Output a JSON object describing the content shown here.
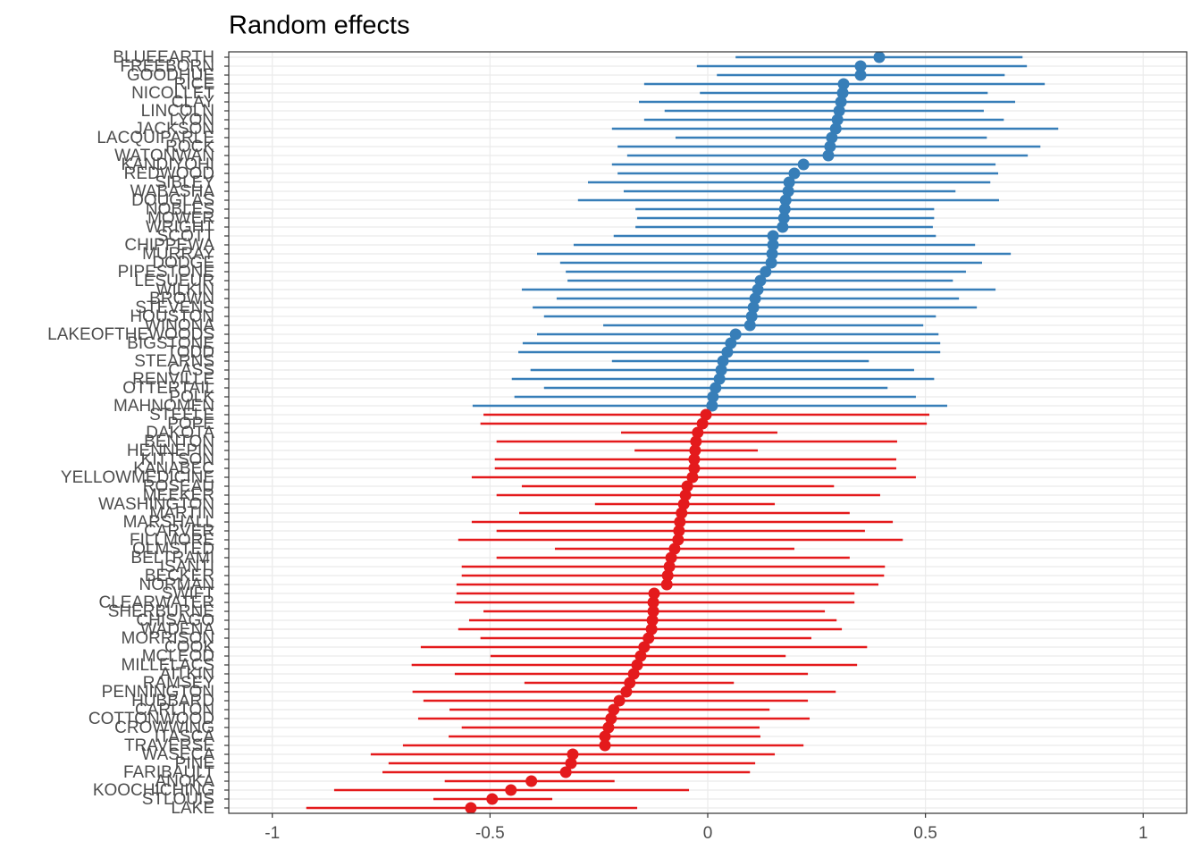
{
  "chart_data": {
    "type": "forest",
    "title": "Random effects",
    "categories": [
      "BLUEEARTH",
      "FREEBORN",
      "GOODHUE",
      "RICE",
      "NICOLLET",
      "CLAY",
      "LINCOLN",
      "LYON",
      "JACKSON",
      "LACQUIPARLE",
      "ROCK",
      "WATONWAN",
      "KANDIYOHI",
      "REDWOOD",
      "SIBLEY",
      "WABASHA",
      "DOUGLAS",
      "NOBLES",
      "MOWER",
      "WRIGHT",
      "SCOTT",
      "CHIPPEWA",
      "MURRAY",
      "DODGE",
      "PIPESTONE",
      "LESUEUR",
      "WILKIN",
      "BROWN",
      "STEVENS",
      "HOUSTON",
      "WINONA",
      "LAKEOFTHEWOODS",
      "BIGSTONE",
      "TODD",
      "STEARNS",
      "CASS",
      "RENVILLE",
      "OTTERTAIL",
      "POLK",
      "MAHNOMEN",
      "STEELE",
      "POPE",
      "DAKOTA",
      "BENTON",
      "HENNEPIN",
      "KITTSON",
      "KANABEC",
      "YELLOWMEDICINE",
      "ROSEAU",
      "MEEKER",
      "WASHINGTON",
      "MARTIN",
      "MARSHALL",
      "CARVER",
      "FILLMORE",
      "OLMSTED",
      "BELTRAMI",
      "ISANTI",
      "BECKER",
      "NORMAN",
      "SWIFT",
      "CLEARWATER",
      "SHERBURNE",
      "CHISAGO",
      "WADENA",
      "MORRISON",
      "COOK",
      "MCLEOD",
      "MILLELACS",
      "AITKIN",
      "RAMSEY",
      "PENNINGTON",
      "HUBBARD",
      "CARLTON",
      "COTTONWOOD",
      "CROWWING",
      "ITASCA",
      "TRAVERSE",
      "WASECA",
      "PINE",
      "FARIBAULT",
      "ANOKA",
      "KOOCHICHING",
      "STLOUIS",
      "LAKE"
    ],
    "values": [
      0.394,
      0.351,
      0.351,
      0.312,
      0.31,
      0.306,
      0.302,
      0.298,
      0.294,
      0.285,
      0.281,
      0.277,
      0.22,
      0.199,
      0.187,
      0.185,
      0.179,
      0.177,
      0.175,
      0.172,
      0.15,
      0.15,
      0.148,
      0.146,
      0.133,
      0.121,
      0.115,
      0.109,
      0.105,
      0.101,
      0.097,
      0.064,
      0.053,
      0.045,
      0.035,
      0.031,
      0.027,
      0.018,
      0.012,
      0.01,
      -0.004,
      -0.012,
      -0.023,
      -0.027,
      -0.029,
      -0.031,
      -0.031,
      -0.035,
      -0.047,
      -0.051,
      -0.055,
      -0.06,
      -0.064,
      -0.066,
      -0.068,
      -0.076,
      -0.084,
      -0.088,
      -0.092,
      -0.094,
      -0.123,
      -0.125,
      -0.125,
      -0.127,
      -0.129,
      -0.136,
      -0.146,
      -0.154,
      -0.162,
      -0.17,
      -0.179,
      -0.187,
      -0.203,
      -0.216,
      -0.222,
      -0.228,
      -0.236,
      -0.236,
      -0.31,
      -0.314,
      -0.326,
      -0.405,
      -0.452,
      -0.495,
      -0.544
    ],
    "lower": [
      0.064,
      -0.025,
      0.021,
      -0.146,
      -0.018,
      -0.158,
      -0.099,
      -0.146,
      -0.22,
      -0.074,
      -0.207,
      -0.185,
      -0.22,
      -0.207,
      -0.275,
      -0.193,
      -0.298,
      -0.166,
      -0.162,
      -0.166,
      -0.216,
      -0.308,
      -0.392,
      -0.339,
      -0.326,
      -0.322,
      -0.427,
      -0.347,
      -0.402,
      -0.376,
      -0.24,
      -0.392,
      -0.425,
      -0.435,
      -0.22,
      -0.407,
      -0.45,
      -0.376,
      -0.444,
      -0.54,
      -0.515,
      -0.522,
      -0.199,
      -0.485,
      -0.168,
      -0.489,
      -0.489,
      -0.542,
      -0.427,
      -0.485,
      -0.259,
      -0.433,
      -0.542,
      -0.485,
      -0.573,
      -0.351,
      -0.485,
      -0.565,
      -0.565,
      -0.577,
      -0.577,
      -0.581,
      -0.515,
      -0.548,
      -0.573,
      -0.522,
      -0.659,
      -0.499,
      -0.68,
      -0.581,
      -0.421,
      -0.678,
      -0.653,
      -0.593,
      -0.665,
      -0.565,
      -0.595,
      -0.7,
      -0.774,
      -0.733,
      -0.747,
      -0.604,
      -0.858,
      -0.63,
      -0.922
    ],
    "upper": [
      0.723,
      0.733,
      0.682,
      0.774,
      0.643,
      0.706,
      0.634,
      0.68,
      0.805,
      0.641,
      0.764,
      0.735,
      0.661,
      0.667,
      0.649,
      0.569,
      0.669,
      0.52,
      0.52,
      0.517,
      0.524,
      0.614,
      0.696,
      0.63,
      0.593,
      0.563,
      0.661,
      0.577,
      0.618,
      0.524,
      0.495,
      0.53,
      0.534,
      0.534,
      0.37,
      0.474,
      0.52,
      0.413,
      0.478,
      0.55,
      0.509,
      0.503,
      0.16,
      0.435,
      0.115,
      0.433,
      0.433,
      0.478,
      0.29,
      0.396,
      0.154,
      0.326,
      0.425,
      0.361,
      0.448,
      0.199,
      0.326,
      0.407,
      0.405,
      0.392,
      0.337,
      0.337,
      0.269,
      0.296,
      0.308,
      0.238,
      0.366,
      0.179,
      0.343,
      0.23,
      0.06,
      0.294,
      0.23,
      0.142,
      0.234,
      0.119,
      0.121,
      0.22,
      0.154,
      0.109,
      0.097,
      -0.214,
      -0.043,
      -0.357,
      -0.162
    ],
    "color_positive": "#377eb8",
    "color_negative": "#e41a1c",
    "xlim": [
      -1.1,
      1.1
    ],
    "xticks": [
      -1,
      -0.5,
      0,
      0.5,
      1
    ],
    "grid": true
  }
}
